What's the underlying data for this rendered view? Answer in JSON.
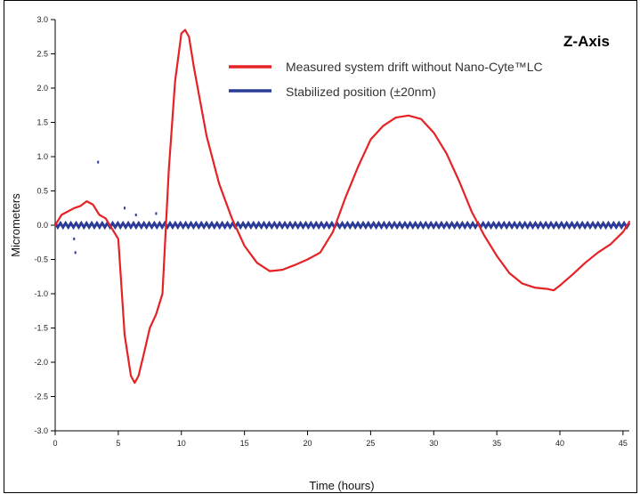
{
  "chart_data": {
    "type": "line",
    "title": "Z-Axis",
    "xlabel": "Time (hours)",
    "ylabel": "Micrometers",
    "xlim": [
      0,
      45.5
    ],
    "ylim": [
      -3.0,
      3.0
    ],
    "x_ticks": [
      0,
      5,
      10,
      15,
      20,
      25,
      30,
      35,
      40,
      45
    ],
    "x_tick_labels": [
      "0",
      "5",
      "10",
      "15",
      "20",
      "25",
      "30",
      "35",
      "40",
      "45"
    ],
    "y_ticks": [
      3.0,
      2.5,
      2.0,
      1.5,
      1.0,
      0.5,
      0.0,
      -0.5,
      -1.0,
      -1.5,
      -2.0,
      -2.5,
      -3.0
    ],
    "y_tick_labels": [
      "3.0",
      "2.5",
      "2.0",
      "1.5",
      "1.0",
      "0.5",
      "0.0",
      "-0.5",
      "-1.0",
      "-1.5",
      "-2.0",
      "-2.5",
      "-3.0"
    ],
    "grid": false,
    "legend_position": "top-right",
    "series": [
      {
        "name": "Measured system drift without Nano-Cyte™LC",
        "color": "#e52226",
        "x": [
          0,
          0.5,
          1,
          1.5,
          2,
          2.5,
          3,
          3.5,
          4,
          4.5,
          5,
          5.5,
          6,
          6.3,
          6.6,
          7,
          7.5,
          8,
          8.5,
          9,
          9.5,
          10,
          10.3,
          10.6,
          11,
          12,
          13,
          14,
          15,
          16,
          17,
          18,
          19,
          20,
          21,
          22,
          23,
          24,
          25,
          26,
          27,
          28,
          29,
          30,
          31,
          32,
          33,
          34,
          35,
          36,
          37,
          38,
          39,
          39.5,
          40,
          41,
          42,
          43,
          44,
          45,
          45.5
        ],
        "y": [
          0.0,
          0.15,
          0.2,
          0.25,
          0.28,
          0.35,
          0.3,
          0.15,
          0.1,
          -0.05,
          -0.2,
          -1.6,
          -2.2,
          -2.3,
          -2.2,
          -1.9,
          -1.5,
          -1.3,
          -1.0,
          0.8,
          2.1,
          2.8,
          2.85,
          2.75,
          2.3,
          1.3,
          0.6,
          0.1,
          -0.3,
          -0.55,
          -0.67,
          -0.65,
          -0.58,
          -0.5,
          -0.4,
          -0.1,
          0.4,
          0.85,
          1.25,
          1.45,
          1.57,
          1.6,
          1.55,
          1.35,
          1.05,
          0.65,
          0.2,
          -0.15,
          -0.45,
          -0.7,
          -0.85,
          -0.91,
          -0.93,
          -0.95,
          -0.88,
          -0.72,
          -0.55,
          -0.4,
          -0.28,
          -0.1,
          0.05
        ]
      },
      {
        "name": "Stabilized position (±20nm)",
        "color": "#2c3b97",
        "x": [
          0,
          45.5
        ],
        "y": [
          0.0,
          0.0
        ],
        "outliers": [
          [
            1.5,
            -0.2
          ],
          [
            1.6,
            -0.4
          ],
          [
            3.4,
            0.92
          ],
          [
            5.5,
            0.25
          ],
          [
            6.4,
            0.15
          ],
          [
            8,
            0.17
          ]
        ]
      }
    ]
  }
}
